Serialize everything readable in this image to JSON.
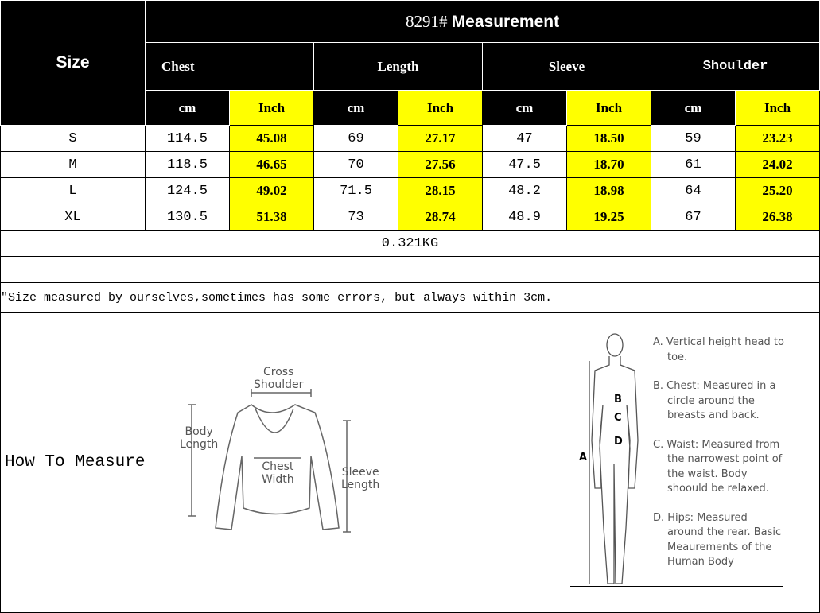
{
  "table": {
    "size_header": "Size",
    "title_code": "8291#",
    "title_text": "Measurement",
    "groups": [
      "Chest",
      "Length",
      "Sleeve",
      "Shoulder"
    ],
    "unit_cm": "cm",
    "unit_inch": "Inch",
    "rows": [
      {
        "size": "S",
        "values": [
          "114.5",
          "45.08",
          "69",
          "27.17",
          "47",
          "18.50",
          "59",
          "23.23"
        ]
      },
      {
        "size": "M",
        "values": [
          "118.5",
          "46.65",
          "70",
          "27.56",
          "47.5",
          "18.70",
          "61",
          "24.02"
        ]
      },
      {
        "size": "L",
        "values": [
          "124.5",
          "49.02",
          "71.5",
          "28.15",
          "48.2",
          "18.98",
          "64",
          "25.20"
        ]
      },
      {
        "size": "XL",
        "values": [
          "130.5",
          "51.38",
          "73",
          "28.74",
          "48.9",
          "19.25",
          "67",
          "26.38"
        ]
      }
    ],
    "weight": "0.321KG",
    "note": "\"Size measured by ourselves,sometimes has some errors, but always within 3cm."
  },
  "measure": {
    "label": "How To Measure",
    "garment_labels": {
      "cross_shoulder": "Cross\nShoulder",
      "body_length": "Body\nLength",
      "chest_width": "Chest\nWidth",
      "sleeve_length": "Sleeve\nLength"
    },
    "body_letters": [
      "A",
      "B",
      "C",
      "D"
    ],
    "legend": [
      "A. Vertical height head to toe.",
      "B. Chest: Measured in a circle around the breasts and back.",
      "C. Waist: Measured from the narrowest point of the waist. Body shoould be relaxed.",
      "D. Hips: Measured around the rear. Basic Meaurements of the Human Body"
    ]
  },
  "colors": {
    "header_bg": "#000000",
    "inch_bg": "#ffff00"
  }
}
